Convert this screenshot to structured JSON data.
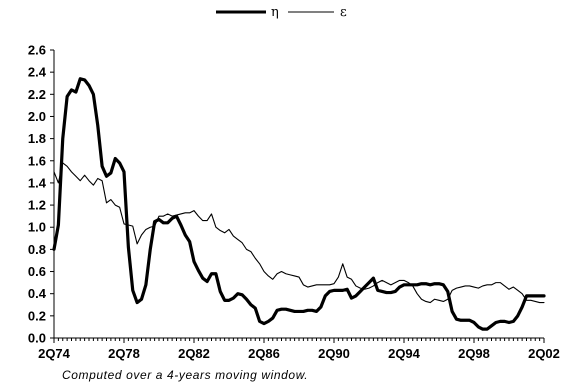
{
  "chart_data": {
    "type": "line",
    "legend_position": "top-center",
    "grid": false,
    "note": "Computed over a 4-years moving window.",
    "x_ticks": [
      "2Q74",
      "2Q78",
      "2Q82",
      "2Q86",
      "2Q90",
      "2Q94",
      "2Q98",
      "2Q02"
    ],
    "y_ticks": [
      "0.0",
      "0.2",
      "0.4",
      "0.6",
      "0.8",
      "1.0",
      "1.2",
      "1.4",
      "1.6",
      "1.8",
      "2.0",
      "2.2",
      "2.4",
      "2.6"
    ],
    "xlim": [
      "2Q74",
      "2Q02"
    ],
    "ylim": [
      0,
      2.6
    ],
    "x": [
      "2Q74",
      "3Q74",
      "4Q74",
      "1Q75",
      "2Q75",
      "3Q75",
      "4Q75",
      "1Q76",
      "2Q76",
      "3Q76",
      "4Q76",
      "1Q77",
      "2Q77",
      "3Q77",
      "4Q77",
      "1Q78",
      "2Q78",
      "3Q78",
      "4Q78",
      "1Q79",
      "2Q79",
      "3Q79",
      "4Q79",
      "1Q80",
      "2Q80",
      "3Q80",
      "4Q80",
      "1Q81",
      "2Q81",
      "3Q81",
      "4Q81",
      "1Q82",
      "2Q82",
      "3Q82",
      "4Q82",
      "1Q83",
      "2Q83",
      "3Q83",
      "4Q83",
      "1Q84",
      "2Q84",
      "3Q84",
      "4Q84",
      "1Q85",
      "2Q85",
      "3Q85",
      "4Q85",
      "1Q86",
      "2Q86",
      "3Q86",
      "4Q86",
      "1Q87",
      "2Q87",
      "3Q87",
      "4Q87",
      "1Q88",
      "2Q88",
      "3Q88",
      "4Q88",
      "1Q89",
      "2Q89",
      "3Q89",
      "4Q89",
      "1Q90",
      "2Q90",
      "3Q90",
      "4Q90",
      "1Q91",
      "2Q91",
      "3Q91",
      "4Q91",
      "1Q92",
      "2Q92",
      "3Q92",
      "4Q92",
      "1Q93",
      "2Q93",
      "3Q93",
      "4Q93",
      "1Q94",
      "2Q94",
      "3Q94",
      "4Q94",
      "1Q95",
      "2Q95",
      "3Q95",
      "4Q95",
      "1Q96",
      "2Q96",
      "3Q96",
      "4Q96",
      "1Q97",
      "2Q97",
      "3Q97",
      "4Q97",
      "1Q98",
      "2Q98",
      "3Q98",
      "4Q98",
      "1Q99",
      "2Q99",
      "3Q99",
      "4Q99",
      "1Q00",
      "2Q00",
      "3Q00",
      "4Q00",
      "1Q01",
      "2Q01",
      "3Q01",
      "4Q01",
      "1Q02",
      "2Q02"
    ],
    "series": [
      {
        "name": "η",
        "style": "thick",
        "color": "#000000",
        "values": [
          0.8,
          1.02,
          1.8,
          2.18,
          2.24,
          2.22,
          2.34,
          2.33,
          2.28,
          2.2,
          1.92,
          1.55,
          1.46,
          1.49,
          1.62,
          1.58,
          1.5,
          0.82,
          0.43,
          0.32,
          0.35,
          0.48,
          0.8,
          1.05,
          1.07,
          1.04,
          1.04,
          1.08,
          1.1,
          1.02,
          0.93,
          0.87,
          0.69,
          0.61,
          0.54,
          0.51,
          0.58,
          0.58,
          0.42,
          0.34,
          0.34,
          0.36,
          0.4,
          0.39,
          0.35,
          0.3,
          0.27,
          0.15,
          0.13,
          0.15,
          0.18,
          0.25,
          0.26,
          0.26,
          0.25,
          0.24,
          0.24,
          0.24,
          0.25,
          0.25,
          0.24,
          0.28,
          0.38,
          0.42,
          0.43,
          0.43,
          0.43,
          0.44,
          0.36,
          0.38,
          0.42,
          0.46,
          0.5,
          0.54,
          0.43,
          0.42,
          0.41,
          0.41,
          0.42,
          0.46,
          0.48,
          0.48,
          0.48,
          0.48,
          0.49,
          0.49,
          0.48,
          0.49,
          0.49,
          0.48,
          0.42,
          0.24,
          0.17,
          0.16,
          0.16,
          0.16,
          0.14,
          0.1,
          0.08,
          0.08,
          0.11,
          0.14,
          0.15,
          0.15,
          0.14,
          0.15,
          0.2,
          0.28,
          0.38,
          0.38,
          0.38,
          0.38,
          0.38
        ]
      },
      {
        "name": "ε",
        "style": "thin",
        "color": "#000000",
        "values": [
          1.5,
          1.4,
          1.58,
          1.55,
          1.5,
          1.46,
          1.42,
          1.47,
          1.42,
          1.38,
          1.44,
          1.42,
          1.22,
          1.25,
          1.2,
          1.18,
          1.03,
          1.02,
          1.01,
          0.85,
          0.93,
          0.98,
          1.0,
          1.01,
          1.1,
          1.1,
          1.12,
          1.1,
          1.11,
          1.12,
          1.13,
          1.13,
          1.15,
          1.1,
          1.06,
          1.06,
          1.12,
          1.0,
          0.97,
          0.95,
          0.98,
          0.92,
          0.89,
          0.86,
          0.8,
          0.78,
          0.72,
          0.67,
          0.6,
          0.56,
          0.53,
          0.58,
          0.6,
          0.58,
          0.57,
          0.56,
          0.55,
          0.48,
          0.46,
          0.47,
          0.48,
          0.48,
          0.48,
          0.48,
          0.49,
          0.55,
          0.67,
          0.55,
          0.53,
          0.47,
          0.45,
          0.44,
          0.45,
          0.47,
          0.5,
          0.52,
          0.5,
          0.48,
          0.5,
          0.52,
          0.52,
          0.5,
          0.47,
          0.4,
          0.35,
          0.33,
          0.32,
          0.35,
          0.34,
          0.33,
          0.35,
          0.43,
          0.45,
          0.46,
          0.47,
          0.47,
          0.46,
          0.45,
          0.47,
          0.48,
          0.48,
          0.5,
          0.5,
          0.47,
          0.44,
          0.46,
          0.43,
          0.4,
          0.34,
          0.34,
          0.33,
          0.32,
          0.32
        ]
      }
    ]
  }
}
